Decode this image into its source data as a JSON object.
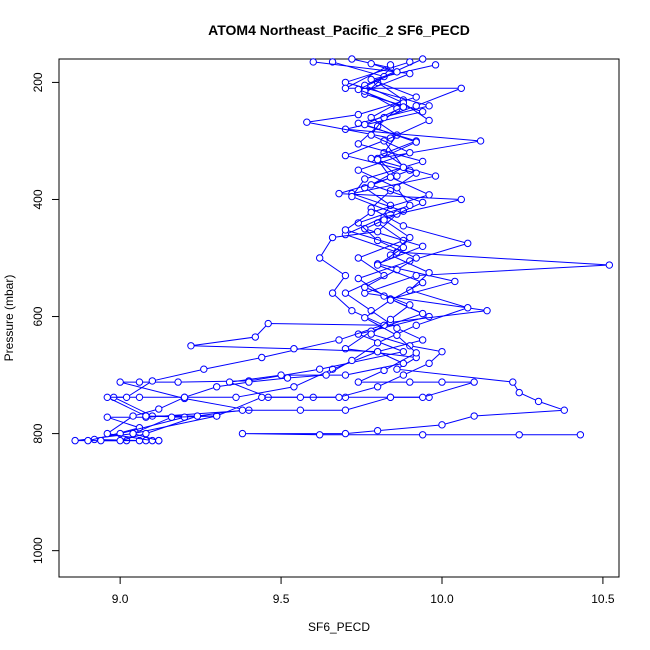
{
  "chart_data": {
    "type": "line",
    "title": "ATOM4 Northeast_Pacific_2 SF6_PECD",
    "xlabel": "SF6_PECD",
    "ylabel": "Pressure (mbar)",
    "xlim": [
      8.81,
      10.55
    ],
    "ylim": [
      1045,
      160
    ],
    "y_reversed": true,
    "x_ticks": [
      9.0,
      9.5,
      10.0,
      10.5
    ],
    "x_tick_labels": [
      "9.0",
      "9.5",
      "10.0",
      "10.5"
    ],
    "y_ticks": [
      200,
      400,
      600,
      800,
      1000
    ],
    "y_tick_labels": [
      "200",
      "400",
      "600",
      "800",
      "1000"
    ],
    "grid": false,
    "color": "#0000ff",
    "series": [
      {
        "points": [
          [
            9.72,
            160
          ],
          [
            9.84,
            175
          ],
          [
            9.8,
            200
          ],
          [
            9.88,
            230
          ],
          [
            9.78,
            260
          ],
          [
            9.86,
            290
          ],
          [
            9.82,
            320
          ],
          [
            9.9,
            350
          ],
          [
            9.76,
            380
          ],
          [
            9.84,
            410
          ],
          [
            9.8,
            440
          ],
          [
            9.88,
            470
          ],
          [
            9.74,
            500
          ],
          [
            9.82,
            530
          ],
          [
            9.7,
            560
          ],
          [
            9.78,
            590
          ],
          [
            9.86,
            620
          ],
          [
            9.94,
            640
          ],
          [
            9.8,
            660
          ],
          [
            9.66,
            690
          ],
          [
            9.54,
            720
          ],
          [
            9.36,
            738
          ],
          [
            9.2,
            738
          ],
          [
            9.06,
            738
          ],
          [
            8.98,
            738
          ],
          [
            9.1,
            770
          ],
          [
            9.3,
            770
          ],
          [
            9.04,
            800
          ],
          [
            8.86,
            812
          ],
          [
            9.02,
            812
          ],
          [
            9.12,
            812
          ]
        ]
      },
      {
        "points": [
          [
            9.9,
            165
          ],
          [
            9.7,
            200
          ],
          [
            9.96,
            240
          ],
          [
            9.74,
            270
          ],
          [
            9.92,
            300
          ],
          [
            9.78,
            330
          ],
          [
            9.98,
            360
          ],
          [
            9.72,
            390
          ],
          [
            9.88,
            420
          ],
          [
            9.76,
            450
          ],
          [
            9.94,
            480
          ],
          [
            9.8,
            510
          ],
          [
            10.04,
            540
          ],
          [
            9.84,
            570
          ],
          [
            9.96,
            600
          ],
          [
            9.74,
            630
          ],
          [
            9.88,
            660
          ],
          [
            9.62,
            690
          ],
          [
            9.4,
            710
          ],
          [
            9.18,
            712
          ],
          [
            9.06,
            712
          ],
          [
            9.0,
            712
          ],
          [
            9.2,
            740
          ],
          [
            9.4,
            760
          ],
          [
            9.08,
            772
          ],
          [
            8.96,
            772
          ],
          [
            9.06,
            790
          ],
          [
            8.92,
            810
          ],
          [
            9.08,
            812
          ]
        ]
      },
      {
        "points": [
          [
            9.66,
            165
          ],
          [
            9.82,
            190
          ],
          [
            9.76,
            220
          ],
          [
            9.94,
            250
          ],
          [
            9.7,
            280
          ],
          [
            10.12,
            300
          ],
          [
            9.8,
            330
          ],
          [
            9.86,
            360
          ],
          [
            9.68,
            390
          ],
          [
            10.06,
            400
          ],
          [
            9.82,
            430
          ],
          [
            9.7,
            460
          ],
          [
            9.86,
            490
          ],
          [
            10.52,
            512
          ],
          [
            9.92,
            530
          ],
          [
            9.76,
            560
          ],
          [
            10.14,
            590
          ],
          [
            9.84,
            610
          ],
          [
            9.68,
            640
          ],
          [
            9.44,
            670
          ],
          [
            9.26,
            690
          ],
          [
            9.1,
            710
          ],
          [
            9.02,
            738
          ],
          [
            8.96,
            738
          ],
          [
            9.08,
            770
          ],
          [
            9.2,
            772
          ],
          [
            9.0,
            800
          ],
          [
            8.9,
            812
          ],
          [
            9.06,
            812
          ]
        ]
      },
      {
        "points": [
          [
            9.98,
            170
          ],
          [
            9.78,
            195
          ],
          [
            9.92,
            225
          ],
          [
            9.74,
            255
          ],
          [
            9.58,
            268
          ],
          [
            9.84,
            295
          ],
          [
            9.7,
            325
          ],
          [
            9.92,
            355
          ],
          [
            9.84,
            385
          ],
          [
            9.78,
            415
          ],
          [
            9.88,
            445
          ],
          [
            10.08,
            475
          ],
          [
            9.9,
            505
          ],
          [
            9.74,
            535
          ],
          [
            9.82,
            565
          ],
          [
            9.94,
            595
          ],
          [
            9.78,
            625
          ],
          [
            9.7,
            655
          ],
          [
            9.92,
            670
          ],
          [
            9.86,
            690
          ],
          [
            10.22,
            712
          ],
          [
            10.24,
            730
          ],
          [
            10.3,
            745
          ],
          [
            10.38,
            760
          ],
          [
            10.1,
            770
          ],
          [
            10.0,
            785
          ],
          [
            9.8,
            795
          ],
          [
            9.7,
            800
          ],
          [
            9.38,
            800
          ],
          [
            9.62,
            802
          ],
          [
            9.94,
            802
          ],
          [
            10.24,
            802
          ],
          [
            10.43,
            802
          ]
        ]
      },
      {
        "points": [
          [
            9.6,
            165
          ],
          [
            9.9,
            185
          ],
          [
            9.76,
            215
          ],
          [
            9.86,
            245
          ],
          [
            9.8,
            275
          ],
          [
            9.74,
            305
          ],
          [
            9.94,
            335
          ],
          [
            9.76,
            365
          ],
          [
            9.72,
            395
          ],
          [
            9.86,
            425
          ],
          [
            9.8,
            455
          ],
          [
            9.66,
            465
          ],
          [
            9.62,
            500
          ],
          [
            9.7,
            530
          ],
          [
            9.66,
            560
          ],
          [
            9.72,
            590
          ],
          [
            9.82,
            615
          ],
          [
            9.46,
            612
          ],
          [
            9.42,
            635
          ],
          [
            9.22,
            650
          ],
          [
            9.54,
            655
          ],
          [
            9.8,
            660
          ],
          [
            9.88,
            680
          ],
          [
            9.7,
            700
          ],
          [
            9.5,
            700
          ],
          [
            9.34,
            712
          ],
          [
            9.46,
            738
          ],
          [
            9.6,
            738
          ],
          [
            9.7,
            738
          ],
          [
            9.84,
            738
          ],
          [
            9.96,
            738
          ]
        ]
      },
      {
        "points": [
          [
            9.94,
            160
          ],
          [
            9.76,
            205
          ],
          [
            9.88,
            235
          ],
          [
            9.96,
            265
          ],
          [
            9.82,
            300
          ],
          [
            9.88,
            345
          ],
          [
            9.78,
            375
          ],
          [
            9.94,
            405
          ],
          [
            9.82,
            435
          ],
          [
            9.9,
            465
          ],
          [
            9.84,
            495
          ],
          [
            9.96,
            525
          ],
          [
            9.9,
            555
          ],
          [
            10.08,
            585
          ],
          [
            9.92,
            615
          ],
          [
            9.8,
            645
          ],
          [
            9.72,
            675
          ],
          [
            9.64,
            700
          ],
          [
            9.52,
            705
          ],
          [
            9.4,
            712
          ],
          [
            9.3,
            720
          ],
          [
            9.2,
            738
          ],
          [
            9.12,
            758
          ],
          [
            9.04,
            770
          ],
          [
            8.96,
            800
          ],
          [
            9.1,
            812
          ]
        ]
      },
      {
        "points": [
          [
            9.84,
            170
          ],
          [
            9.7,
            210
          ],
          [
            10.06,
            210
          ],
          [
            9.92,
            240
          ],
          [
            9.82,
            260
          ],
          [
            9.78,
            290
          ],
          [
            9.9,
            320
          ],
          [
            9.74,
            350
          ],
          [
            9.86,
            380
          ],
          [
            9.9,
            410
          ],
          [
            9.74,
            440
          ],
          [
            9.8,
            470
          ],
          [
            9.92,
            500
          ],
          [
            9.86,
            520
          ],
          [
            9.76,
            550
          ],
          [
            9.9,
            580
          ],
          [
            9.84,
            605
          ],
          [
            9.78,
            630
          ],
          [
            9.9,
            650
          ],
          [
            10.0,
            660
          ],
          [
            9.96,
            680
          ],
          [
            9.88,
            700
          ],
          [
            9.8,
            720
          ],
          [
            9.68,
            738
          ],
          [
            9.56,
            738
          ],
          [
            9.44,
            738
          ],
          [
            9.3,
            770
          ],
          [
            9.16,
            772
          ],
          [
            9.04,
            800
          ],
          [
            9.12,
            812
          ]
        ]
      },
      {
        "points": [
          [
            9.78,
            168
          ],
          [
            9.86,
            182
          ],
          [
            9.74,
            212
          ],
          [
            9.88,
            242
          ],
          [
            9.76,
            272
          ],
          [
            9.92,
            302
          ],
          [
            9.8,
            332
          ],
          [
            9.84,
            362
          ],
          [
            9.96,
            392
          ],
          [
            9.78,
            422
          ],
          [
            9.7,
            452
          ],
          [
            9.88,
            482
          ],
          [
            9.8,
            512
          ],
          [
            9.94,
            542
          ],
          [
            9.84,
            572
          ],
          [
            9.76,
            602
          ],
          [
            9.86,
            632
          ],
          [
            9.92,
            662
          ],
          [
            9.82,
            692
          ],
          [
            9.74,
            712
          ],
          [
            9.9,
            712
          ],
          [
            10.0,
            712
          ],
          [
            10.1,
            712
          ],
          [
            9.94,
            738
          ],
          [
            9.84,
            738
          ],
          [
            9.7,
            760
          ],
          [
            9.56,
            760
          ],
          [
            9.38,
            760
          ],
          [
            9.24,
            770
          ],
          [
            9.08,
            800
          ],
          [
            9.0,
            812
          ],
          [
            8.94,
            812
          ]
        ]
      }
    ]
  }
}
